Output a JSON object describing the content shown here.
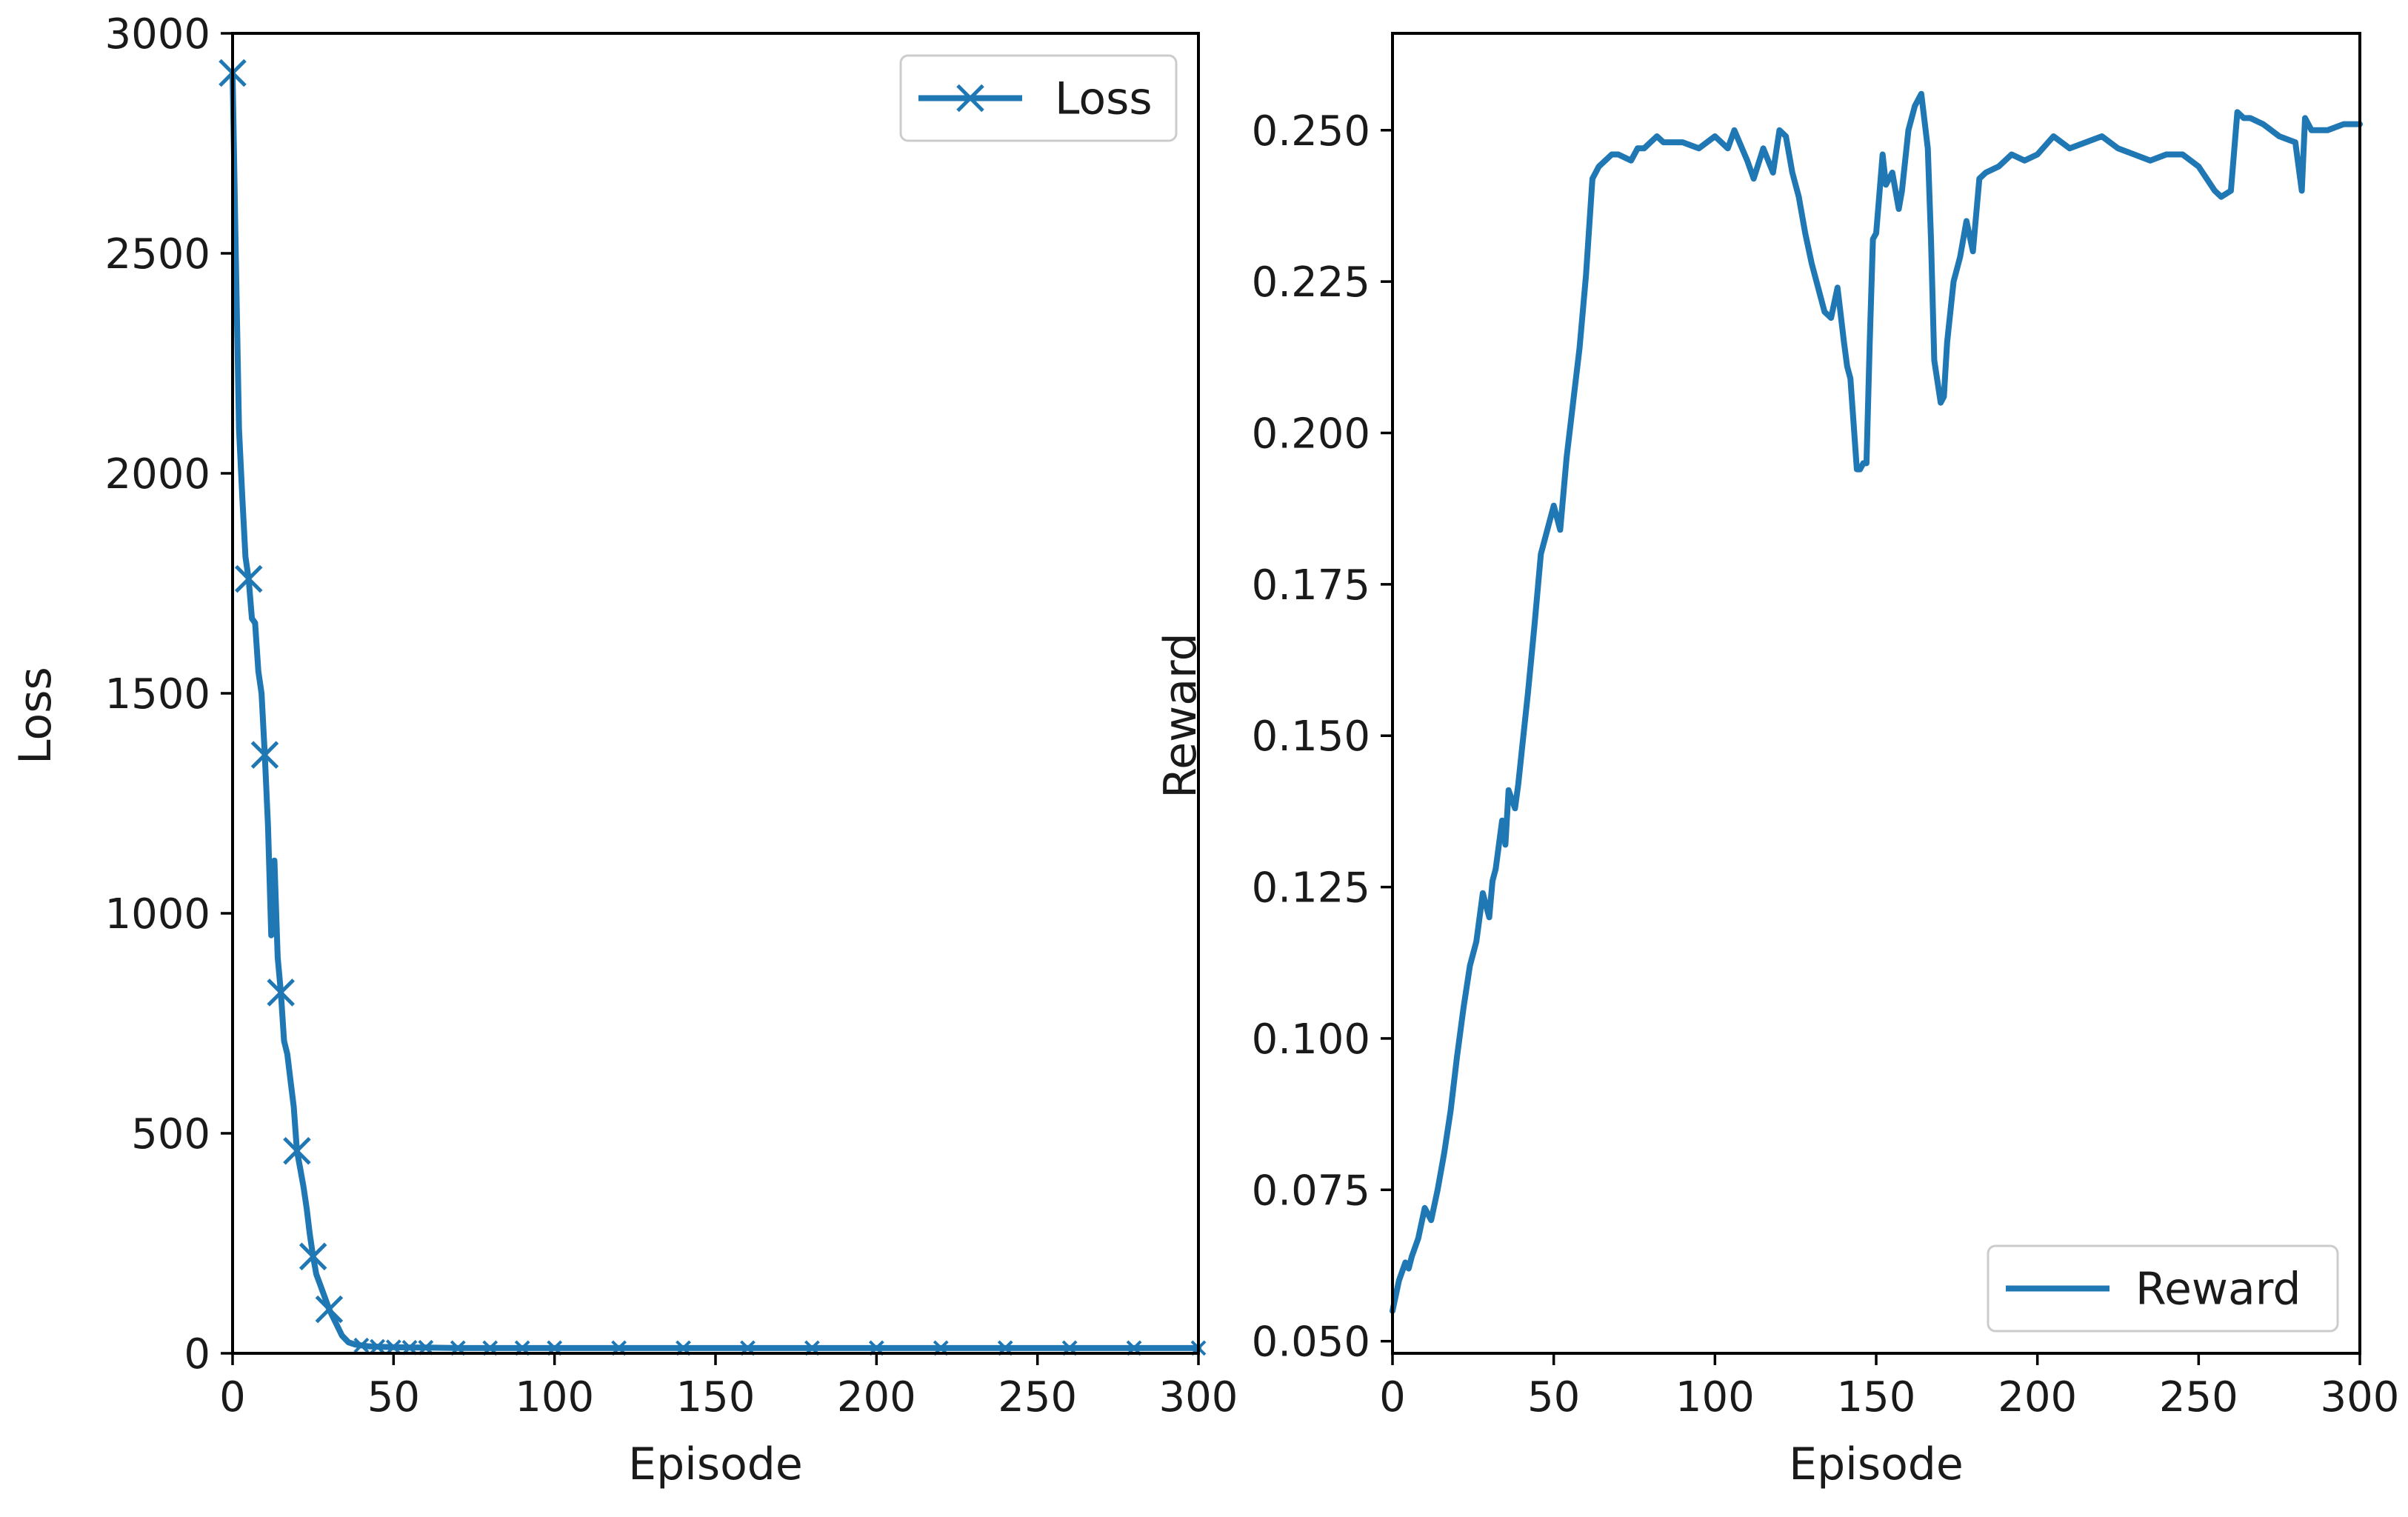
{
  "colors": {
    "series": "#1f77b4",
    "axis": "#000000",
    "background": "#ffffff"
  },
  "chart_data": [
    {
      "type": "line",
      "title": "",
      "xlabel": "Episode",
      "ylabel": "Loss",
      "xlim": [
        0,
        300
      ],
      "ylim": [
        0,
        3000
      ],
      "xticks": [
        0,
        50,
        100,
        150,
        200,
        250,
        300
      ],
      "xtick_labels": [
        "0",
        "50",
        "100",
        "150",
        "200",
        "250",
        "300"
      ],
      "yticks": [
        0,
        500,
        1000,
        1500,
        2000,
        2500,
        3000
      ],
      "ytick_labels": [
        "0",
        "500",
        "1000",
        "1500",
        "2000",
        "2500",
        "3000"
      ],
      "grid": false,
      "legend": {
        "position": "top-right"
      },
      "series": [
        {
          "name": "Loss",
          "marker": "x",
          "color": "#1f77b4",
          "x": [
            0,
            1,
            2,
            3,
            4,
            5,
            6,
            7,
            8,
            9,
            10,
            11,
            12,
            13,
            14,
            15,
            16,
            17,
            18,
            19,
            20,
            21,
            22,
            23,
            24,
            25,
            26,
            27,
            28,
            29,
            30,
            32,
            34,
            36,
            38,
            40,
            42,
            45,
            50,
            55,
            60,
            70,
            80,
            90,
            100,
            120,
            140,
            160,
            180,
            200,
            220,
            240,
            260,
            280,
            300
          ],
          "y": [
            2910,
            2500,
            2100,
            1950,
            1810,
            1760,
            1670,
            1660,
            1550,
            1500,
            1360,
            1200,
            950,
            1120,
            900,
            820,
            710,
            680,
            620,
            560,
            460,
            420,
            380,
            330,
            270,
            220,
            180,
            160,
            140,
            120,
            100,
            70,
            40,
            25,
            20,
            18,
            16,
            15,
            14,
            13,
            13,
            12,
            12,
            12,
            12,
            12,
            12,
            12,
            12,
            12,
            12,
            12,
            12,
            12,
            12
          ]
        }
      ]
    },
    {
      "type": "line",
      "title": "",
      "xlabel": "Episode",
      "ylabel": "Reward",
      "xlim": [
        0,
        300
      ],
      "ylim": [
        0.048,
        0.266
      ],
      "xticks": [
        0,
        50,
        100,
        150,
        200,
        250,
        300
      ],
      "xtick_labels": [
        "0",
        "50",
        "100",
        "150",
        "200",
        "250",
        "300"
      ],
      "yticks": [
        0.05,
        0.075,
        0.1,
        0.125,
        0.15,
        0.175,
        0.2,
        0.225,
        0.25
      ],
      "ytick_labels": [
        "0.050",
        "0.075",
        "0.100",
        "0.125",
        "0.150",
        "0.175",
        "0.200",
        "0.225",
        "0.250"
      ],
      "grid": false,
      "legend": {
        "position": "bottom-right"
      },
      "series": [
        {
          "name": "Reward",
          "marker": "none",
          "color": "#1f77b4",
          "x": [
            0,
            2,
            4,
            5,
            6,
            8,
            10,
            12,
            14,
            16,
            18,
            20,
            22,
            24,
            26,
            28,
            30,
            31,
            32,
            34,
            35,
            36,
            38,
            39,
            40,
            42,
            44,
            46,
            48,
            50,
            52,
            54,
            56,
            58,
            60,
            62,
            64,
            66,
            68,
            70,
            74,
            76,
            78,
            80,
            82,
            84,
            86,
            90,
            95,
            100,
            104,
            106,
            110,
            112,
            115,
            118,
            120,
            122,
            124,
            126,
            128,
            130,
            132,
            134,
            136,
            138,
            140,
            141,
            142,
            144,
            145,
            146,
            147,
            148,
            149,
            150,
            152,
            153,
            155,
            157,
            158,
            160,
            162,
            164,
            166,
            167,
            168,
            170,
            171,
            172,
            174,
            176,
            178,
            180,
            182,
            184,
            188,
            192,
            196,
            200,
            205,
            210,
            215,
            220,
            225,
            230,
            235,
            240,
            245,
            250,
            255,
            257,
            260,
            262,
            264,
            266,
            270,
            275,
            280,
            282,
            283,
            285,
            290,
            295,
            300
          ],
          "y": [
            0.055,
            0.06,
            0.063,
            0.062,
            0.064,
            0.067,
            0.072,
            0.07,
            0.075,
            0.081,
            0.088,
            0.097,
            0.105,
            0.112,
            0.116,
            0.124,
            0.12,
            0.126,
            0.128,
            0.136,
            0.132,
            0.141,
            0.138,
            0.142,
            0.147,
            0.157,
            0.168,
            0.18,
            0.184,
            0.188,
            0.184,
            0.196,
            0.205,
            0.214,
            0.226,
            0.242,
            0.244,
            0.245,
            0.246,
            0.246,
            0.245,
            0.247,
            0.247,
            0.248,
            0.249,
            0.248,
            0.248,
            0.248,
            0.247,
            0.249,
            0.247,
            0.25,
            0.245,
            0.242,
            0.247,
            0.243,
            0.25,
            0.249,
            0.243,
            0.239,
            0.233,
            0.228,
            0.224,
            0.22,
            0.219,
            0.224,
            0.215,
            0.211,
            0.209,
            0.194,
            0.194,
            0.195,
            0.195,
            0.215,
            0.232,
            0.233,
            0.246,
            0.241,
            0.243,
            0.237,
            0.24,
            0.25,
            0.254,
            0.256,
            0.247,
            0.232,
            0.212,
            0.205,
            0.206,
            0.215,
            0.225,
            0.229,
            0.235,
            0.23,
            0.242,
            0.243,
            0.244,
            0.246,
            0.245,
            0.246,
            0.249,
            0.247,
            0.248,
            0.249,
            0.247,
            0.246,
            0.245,
            0.246,
            0.246,
            0.244,
            0.24,
            0.239,
            0.24,
            0.253,
            0.252,
            0.252,
            0.251,
            0.249,
            0.248,
            0.24,
            0.252,
            0.25,
            0.25,
            0.251,
            0.251
          ]
        }
      ]
    }
  ]
}
